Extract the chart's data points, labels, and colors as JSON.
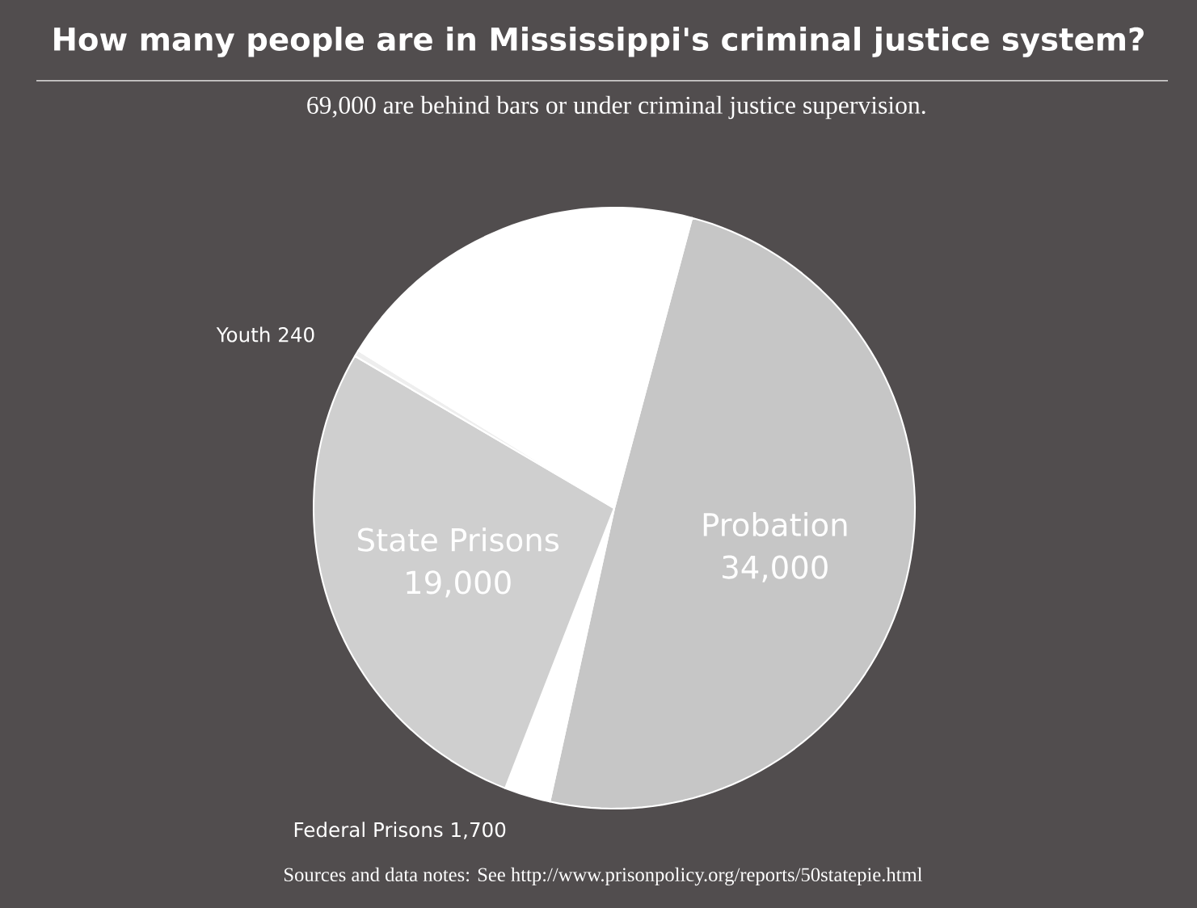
{
  "chart_data": {
    "type": "pie",
    "title": "How many people are in Mississippi's criminal justice system?",
    "subtitle": "69,000 are behind bars or under criminal justice supervision.",
    "categories": [
      "Probation",
      "Federal Prisons",
      "State Prisons",
      "Youth",
      null
    ],
    "values": [
      34000,
      1700,
      19000,
      240,
      14060
    ],
    "colors": [
      "#c6c6c6",
      "#ffffff",
      "#cfcfcf",
      "#eeeeee",
      "#ffffff"
    ],
    "value_labels": [
      "34,000",
      "1,700",
      "19,000",
      "240",
      null
    ],
    "annotations": [
      "Sources and data notes: See http://www.prisonpolicy.org/reports/50statepie.html"
    ]
  }
}
